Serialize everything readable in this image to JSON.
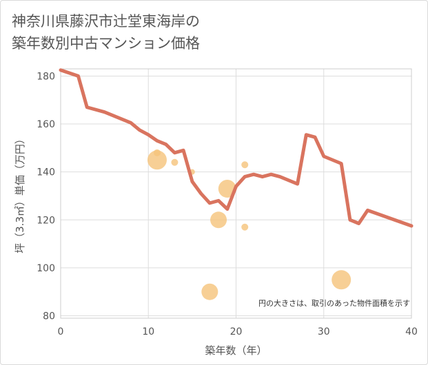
{
  "header": {
    "title_line1": "神奈川県藤沢市辻堂東海岸の",
    "title_line2": "築年数別中古マンション価格"
  },
  "chart_data": {
    "type": "line+scatter",
    "title": "神奈川県藤沢市辻堂東海岸の築年数別中古マンション価格",
    "xlabel": "築年数（年）",
    "ylabel": "坪（3.3㎡）単価（万円）",
    "xlim": [
      0,
      40
    ],
    "ylim": [
      79,
      183
    ],
    "xticks": [
      0,
      10,
      20,
      30,
      40
    ],
    "yticks": [
      80,
      100,
      120,
      140,
      160,
      180
    ],
    "grid": true,
    "note": "円の大きさは、取引のあった物件面積を示す",
    "line_color": "#d9745f",
    "bubble_color": "#f5c37a",
    "line": {
      "x": [
        0,
        2,
        3,
        5,
        8,
        9,
        10,
        11,
        12,
        13,
        14,
        15,
        16,
        17,
        18,
        19,
        20,
        21,
        22,
        23,
        24,
        25,
        27,
        28,
        29,
        30,
        32,
        33,
        34,
        35,
        40
      ],
      "y": [
        182.5,
        180,
        167,
        165,
        160.5,
        157.5,
        155.5,
        153,
        151.5,
        148,
        149,
        136,
        131,
        127,
        128,
        124.5,
        134,
        138,
        139,
        138,
        139,
        138,
        135,
        155.5,
        154.5,
        146.5,
        143.5,
        120,
        118.5,
        124,
        117.5
      ]
    },
    "bubbles": [
      {
        "x": 11,
        "y": 145,
        "size": 14
      },
      {
        "x": 11,
        "y": 148,
        "size": 5
      },
      {
        "x": 13,
        "y": 144,
        "size": 5
      },
      {
        "x": 15,
        "y": 140,
        "size": 4
      },
      {
        "x": 17,
        "y": 90,
        "size": 12
      },
      {
        "x": 18,
        "y": 120,
        "size": 12
      },
      {
        "x": 19,
        "y": 133,
        "size": 13
      },
      {
        "x": 21,
        "y": 143,
        "size": 5
      },
      {
        "x": 21,
        "y": 117,
        "size": 5
      },
      {
        "x": 32,
        "y": 95,
        "size": 14
      }
    ]
  }
}
